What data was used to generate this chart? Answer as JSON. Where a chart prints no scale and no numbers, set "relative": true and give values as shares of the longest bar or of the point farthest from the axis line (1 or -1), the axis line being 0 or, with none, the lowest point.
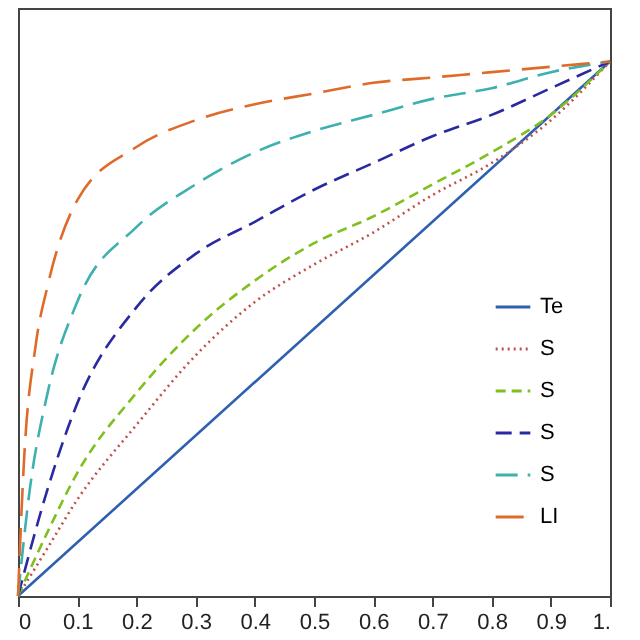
{
  "chart_data": {
    "type": "line",
    "relative": true,
    "xlim": [
      0,
      1
    ],
    "xticks": [
      0,
      0.1,
      0.2,
      0.3,
      0.4,
      0.5,
      0.6,
      0.7,
      0.8,
      0.9,
      {
        "value": 1,
        "label": "1."
      }
    ],
    "tick_labels": "x",
    "grid": false,
    "legend": "right",
    "marker": "none",
    "series": [
      {
        "name": "Te",
        "color": "#2e5fb0",
        "line_style": "solid",
        "x": [
          0,
          1
        ],
        "values": [
          0,
          1
        ]
      },
      {
        "name": "S",
        "color": "#c0504d",
        "line_style": "dotted",
        "x": [
          0,
          0.05,
          0.1,
          0.2,
          0.3,
          0.4,
          0.5,
          0.6,
          0.7,
          0.8,
          0.9,
          1
        ],
        "values": [
          0,
          0.09,
          0.18,
          0.32,
          0.45,
          0.55,
          0.62,
          0.68,
          0.75,
          0.81,
          0.89,
          1
        ]
      },
      {
        "name": "S",
        "color": "#7fbf1f",
        "line_style": "dashed",
        "x": [
          0,
          0.05,
          0.1,
          0.2,
          0.3,
          0.4,
          0.5,
          0.6,
          0.7,
          0.8,
          0.9,
          1
        ],
        "values": [
          0,
          0.12,
          0.23,
          0.38,
          0.5,
          0.59,
          0.66,
          0.71,
          0.77,
          0.83,
          0.9,
          1
        ]
      },
      {
        "name": "S",
        "color": "#2a2aa0",
        "line_style": "dashed",
        "x": [
          0,
          0.05,
          0.1,
          0.2,
          0.3,
          0.4,
          0.5,
          0.6,
          0.7,
          0.8,
          0.9,
          1
        ],
        "values": [
          0,
          0.2,
          0.36,
          0.54,
          0.64,
          0.7,
          0.76,
          0.81,
          0.86,
          0.9,
          0.95,
          1
        ]
      },
      {
        "name": "S",
        "color": "#3fb0b0",
        "line_style": "dashed",
        "x": [
          0,
          0.02,
          0.05,
          0.1,
          0.2,
          0.3,
          0.4,
          0.5,
          0.6,
          0.7,
          0.8,
          0.9,
          1
        ],
        "values": [
          0,
          0.2,
          0.38,
          0.55,
          0.69,
          0.77,
          0.83,
          0.87,
          0.9,
          0.93,
          0.95,
          0.98,
          1
        ]
      },
      {
        "name": "LI",
        "color": "#e06a2a",
        "line_style": "dashed",
        "x": [
          0,
          0.01,
          0.03,
          0.05,
          0.1,
          0.2,
          0.3,
          0.4,
          0.5,
          0.6,
          0.7,
          0.8,
          0.9,
          1
        ],
        "values": [
          0,
          0.25,
          0.47,
          0.58,
          0.74,
          0.84,
          0.89,
          0.92,
          0.94,
          0.96,
          0.97,
          0.98,
          0.99,
          1
        ]
      }
    ]
  }
}
